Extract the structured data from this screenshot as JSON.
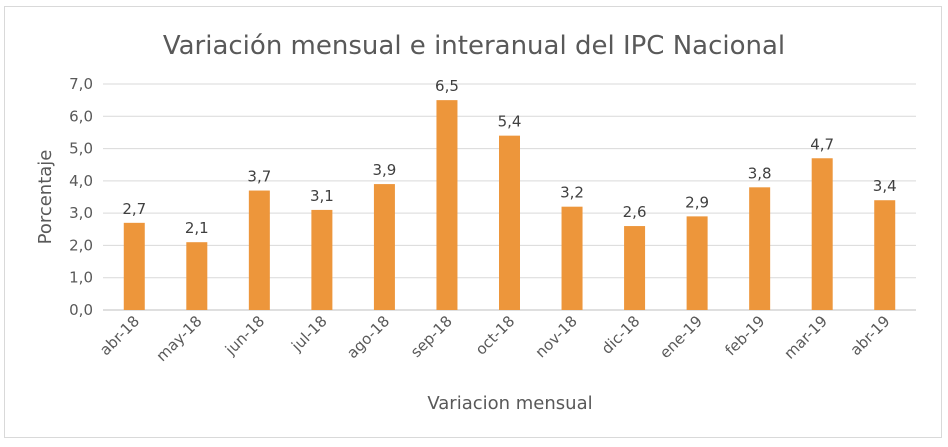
{
  "chart_data": {
    "type": "bar",
    "title": "Variación mensual e interanual del IPC Nacional",
    "xlabel": "Variacion mensual",
    "ylabel": "Porcentaje",
    "categories": [
      "abr-18",
      "may-18",
      "jun-18",
      "jul-18",
      "ago-18",
      "sep-18",
      "oct-18",
      "nov-18",
      "dic-18",
      "ene-19",
      "feb-19",
      "mar-19",
      "abr-19"
    ],
    "values": [
      2.7,
      2.1,
      3.7,
      3.1,
      3.9,
      6.5,
      5.4,
      3.2,
      2.6,
      2.9,
      3.8,
      4.7,
      3.4
    ],
    "value_labels": [
      "2,7",
      "2,1",
      "3,7",
      "3,1",
      "3,9",
      "6,5",
      "5,4",
      "3,2",
      "2,6",
      "2,9",
      "3,8",
      "4,7",
      "3,4"
    ],
    "ylim": [
      0,
      7
    ],
    "yticks": [
      0,
      1,
      2,
      3,
      4,
      5,
      6,
      7
    ],
    "ytick_labels": [
      "0,0",
      "1,0",
      "2,0",
      "3,0",
      "4,0",
      "5,0",
      "6,0",
      "7,0"
    ],
    "grid": true,
    "bar_color": "#ed963b"
  }
}
